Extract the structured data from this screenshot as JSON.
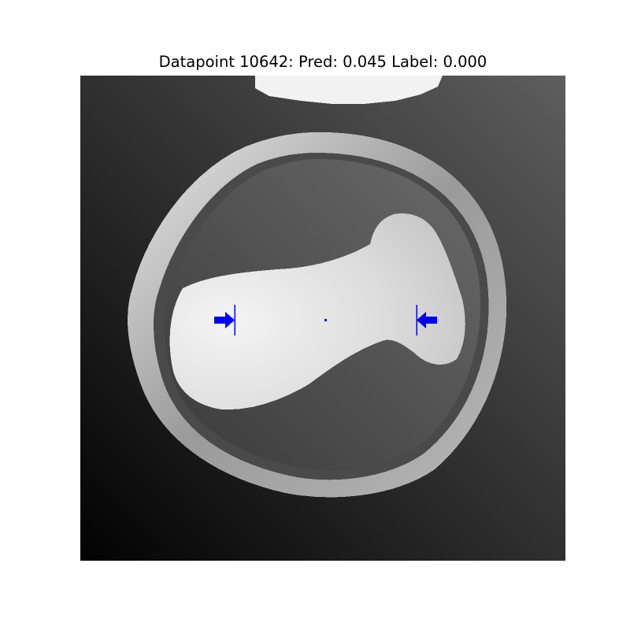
{
  "figure": {
    "title": "Datapoint 10642: Pred: 0.045 Label: 0.000"
  },
  "image": {
    "kind": "grayscale scan",
    "marker_color": "#0000ff",
    "markers": [
      "right-arrow-icon",
      "left-arrow-icon",
      "center-dot"
    ]
  }
}
